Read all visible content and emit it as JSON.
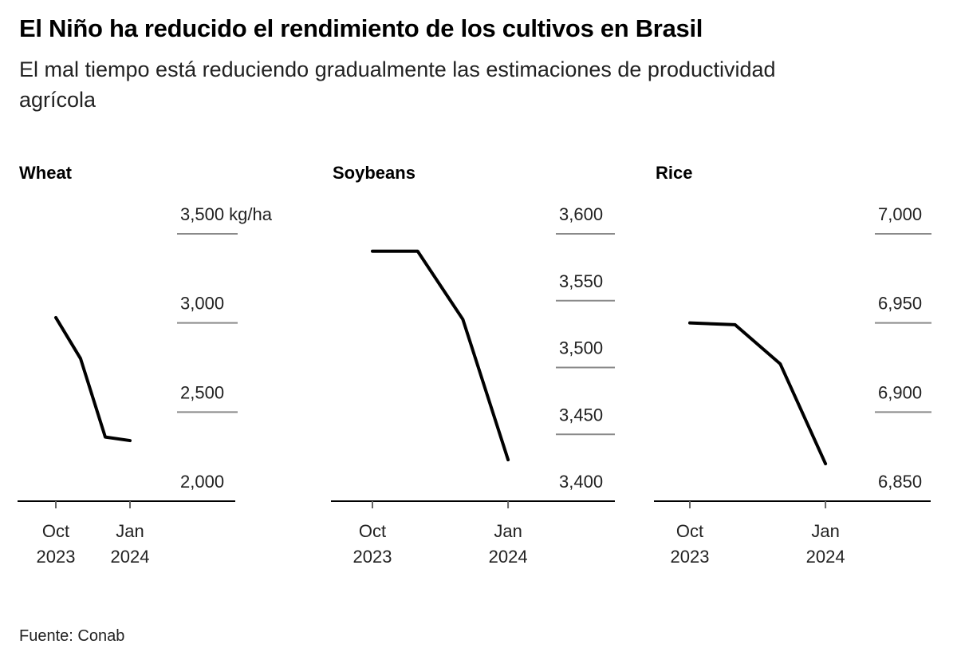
{
  "title": "El Niño ha reducido el rendimiento de los cultivos en Brasil",
  "subtitle": "El mal tiempo está reduciendo gradualmente las estimaciones de productividad agrícola",
  "source": "Fuente: Conab",
  "chart_data": [
    {
      "type": "line",
      "title": "Wheat",
      "unit": "kg/ha",
      "x": [
        "2023-10",
        "2023-11",
        "2023-12",
        "2024-01"
      ],
      "values": [
        3030,
        2800,
        2360,
        2340
      ],
      "ylim": [
        2000,
        3500
      ],
      "yticks": [
        2000,
        2500,
        3000,
        3500
      ],
      "ytick_labels": [
        "2,000",
        "2,500",
        "3,000",
        "3,500 kg/ha"
      ],
      "xtick_labels": [
        [
          "Oct",
          "2023"
        ],
        [
          "Jan",
          "2024"
        ]
      ],
      "grid": true,
      "line_color": "#000000"
    },
    {
      "type": "line",
      "title": "Soybeans",
      "x": [
        "2023-10",
        "2023-11",
        "2023-12",
        "2024-01"
      ],
      "values": [
        3587,
        3587,
        3536,
        3431
      ],
      "ylim": [
        3400,
        3600
      ],
      "yticks": [
        3400,
        3450,
        3500,
        3550,
        3600
      ],
      "ytick_labels": [
        "3,400",
        "3,450",
        "3,500",
        "3,550",
        "3,600"
      ],
      "xtick_labels": [
        [
          "Oct",
          "2023"
        ],
        [
          "Jan",
          "2024"
        ]
      ],
      "grid": true,
      "line_color": "#000000"
    },
    {
      "type": "line",
      "title": "Rice",
      "x": [
        "2023-10",
        "2023-11",
        "2023-12",
        "2024-01"
      ],
      "values": [
        6950,
        6949,
        6927,
        6871
      ],
      "ylim": [
        6850,
        7000
      ],
      "yticks": [
        6850,
        6900,
        6950,
        7000
      ],
      "ytick_labels": [
        "6,850",
        "6,900",
        "6,950",
        "7,000"
      ],
      "xtick_labels": [
        [
          "Oct",
          "2023"
        ],
        [
          "Jan",
          "2024"
        ]
      ],
      "grid": true,
      "line_color": "#000000"
    }
  ]
}
